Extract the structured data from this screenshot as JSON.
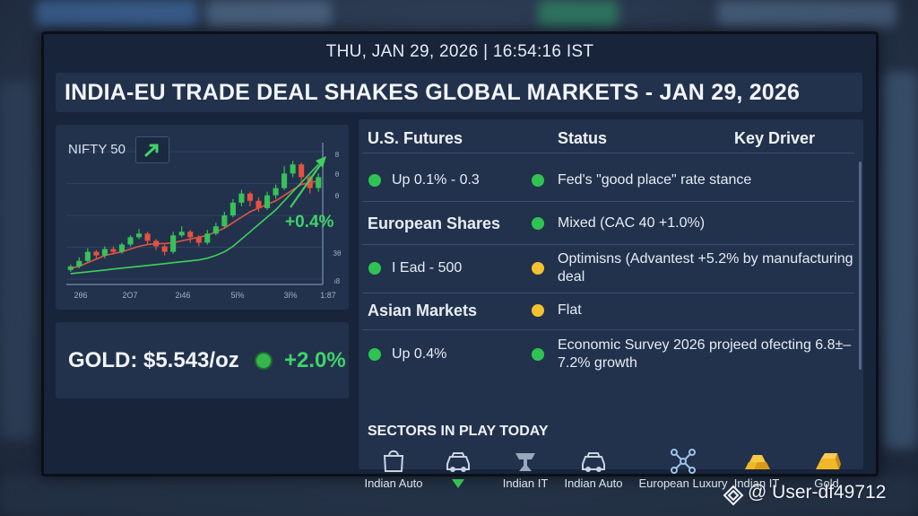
{
  "datetime": "THU, JAN 29, 2026 | 16:54:16 IST",
  "headline": "INDIA-EU TRADE DEAL SHAKES GLOBAL MARKETS - JAN 29, 2026",
  "chart": {
    "title": "NIFTY 50",
    "change_label": "+0.4%",
    "x_ticks": [
      "2θ6",
      "2Ο7",
      "2ι46",
      "5ί%",
      "3ί%",
      "1:87"
    ],
    "y_ticks": [
      "8",
      "θ",
      "θ",
      "3θ",
      "ι8"
    ],
    "colors": {
      "up": "#37c15a",
      "down": "#e5523e",
      "ma_red": "#e0554a",
      "ma_green": "#3fcf5f"
    }
  },
  "chart_data": {
    "type": "candlestick",
    "title": "NIFTY 50",
    "annotation": "+0.4%",
    "x_tick_labels": [
      "2θ6",
      "2Ο7",
      "2ι46",
      "5ί%",
      "3ί%",
      "1:87"
    ],
    "y_tick_labels": [
      "8",
      "θ",
      "θ",
      "3θ",
      "ι8"
    ],
    "candles": [
      {
        "o": 10,
        "c": 14,
        "h": 16,
        "l": 8
      },
      {
        "o": 14,
        "c": 20,
        "h": 24,
        "l": 12
      },
      {
        "o": 20,
        "c": 30,
        "h": 34,
        "l": 18
      },
      {
        "o": 30,
        "c": 26,
        "h": 32,
        "l": 22
      },
      {
        "o": 26,
        "c": 33,
        "h": 36,
        "l": 23
      },
      {
        "o": 33,
        "c": 30,
        "h": 36,
        "l": 27
      },
      {
        "o": 30,
        "c": 38,
        "h": 40,
        "l": 28
      },
      {
        "o": 38,
        "c": 46,
        "h": 48,
        "l": 36
      },
      {
        "o": 46,
        "c": 50,
        "h": 55,
        "l": 44
      },
      {
        "o": 50,
        "c": 42,
        "h": 52,
        "l": 38
      },
      {
        "o": 42,
        "c": 36,
        "h": 44,
        "l": 32
      },
      {
        "o": 36,
        "c": 30,
        "h": 38,
        "l": 26
      },
      {
        "o": 30,
        "c": 48,
        "h": 52,
        "l": 28
      },
      {
        "o": 48,
        "c": 52,
        "h": 58,
        "l": 46
      },
      {
        "o": 52,
        "c": 46,
        "h": 54,
        "l": 40
      },
      {
        "o": 46,
        "c": 40,
        "h": 48,
        "l": 36
      },
      {
        "o": 40,
        "c": 50,
        "h": 54,
        "l": 38
      },
      {
        "o": 50,
        "c": 58,
        "h": 62,
        "l": 48
      },
      {
        "o": 58,
        "c": 70,
        "h": 74,
        "l": 56
      },
      {
        "o": 70,
        "c": 84,
        "h": 88,
        "l": 68
      },
      {
        "o": 84,
        "c": 94,
        "h": 98,
        "l": 80
      },
      {
        "o": 94,
        "c": 86,
        "h": 96,
        "l": 80
      },
      {
        "o": 86,
        "c": 78,
        "h": 90,
        "l": 74
      },
      {
        "o": 78,
        "c": 92,
        "h": 96,
        "l": 76
      },
      {
        "o": 92,
        "c": 100,
        "h": 104,
        "l": 88
      },
      {
        "o": 100,
        "c": 116,
        "h": 124,
        "l": 98
      },
      {
        "o": 116,
        "c": 126,
        "h": 130,
        "l": 112
      },
      {
        "o": 126,
        "c": 112,
        "h": 128,
        "l": 106
      },
      {
        "o": 112,
        "c": 100,
        "h": 114,
        "l": 94
      },
      {
        "o": 100,
        "c": 112,
        "h": 116,
        "l": 96
      }
    ],
    "ma_red": [
      12,
      14,
      18,
      22,
      26,
      28,
      30,
      33,
      36,
      38,
      39,
      39,
      40,
      42,
      44,
      46,
      48,
      52,
      56,
      62,
      68,
      74,
      78,
      82,
      86,
      92,
      98,
      104,
      106,
      108
    ],
    "ma_green": [
      6,
      7,
      8,
      9,
      10,
      11,
      12,
      13,
      14,
      15,
      16,
      17,
      18,
      19,
      20,
      21,
      23,
      26,
      30,
      36,
      44,
      52,
      60,
      68,
      76,
      86,
      96,
      106,
      116,
      126
    ],
    "ylim": [
      0,
      140
    ]
  },
  "gold": {
    "label": "GOLD: $5.543/oz",
    "change": "+2.0%"
  },
  "table": {
    "headers": [
      "U.S. Futures",
      "Status",
      "Key Driver"
    ],
    "rows": [
      {
        "left": "Up 0.1% - 0.3",
        "left_dot": "green",
        "right": "Fed's \"good place\" rate stance",
        "right_dot": "green",
        "bold_left": false
      },
      {
        "left": "European Shares",
        "left_dot": "",
        "right": "Mixed (CAC 40 +1.0%)",
        "right_dot": "green",
        "bold_left": true
      },
      {
        "left": "I Ead - 500",
        "left_dot": "green",
        "right": "Optimisns (Advantest +5.2% by manufacturing deal",
        "right_dot": "yellow",
        "bold_left": false
      },
      {
        "left": "Asian Markets",
        "left_dot": "",
        "right": "Flat",
        "right_dot": "yellow",
        "bold_left": true
      },
      {
        "left": "Up 0.4%",
        "left_dot": "green",
        "right": "Economic Survey 2026 projeed ofecting 6.8±–7.2% growth",
        "right_dot": "green",
        "bold_left": false
      }
    ]
  },
  "sectors": {
    "title": "SECTORS IN PLAY TODAY",
    "items": [
      {
        "label": "Indian Auto",
        "icon": "shopping-bag-icon"
      },
      {
        "label": "",
        "icon": "car-icon"
      },
      {
        "label": "Indian IT",
        "icon": "anvil-icon"
      },
      {
        "label": "Indian Auto",
        "icon": "car-icon"
      },
      {
        "label": "European Luxury",
        "icon": "network-icon"
      },
      {
        "label": "Indian IT",
        "icon": "gold-bars-icon"
      },
      {
        "label": "Gold",
        "icon": "gold-bar-icon"
      }
    ]
  },
  "watermark": "@ User-df49712"
}
